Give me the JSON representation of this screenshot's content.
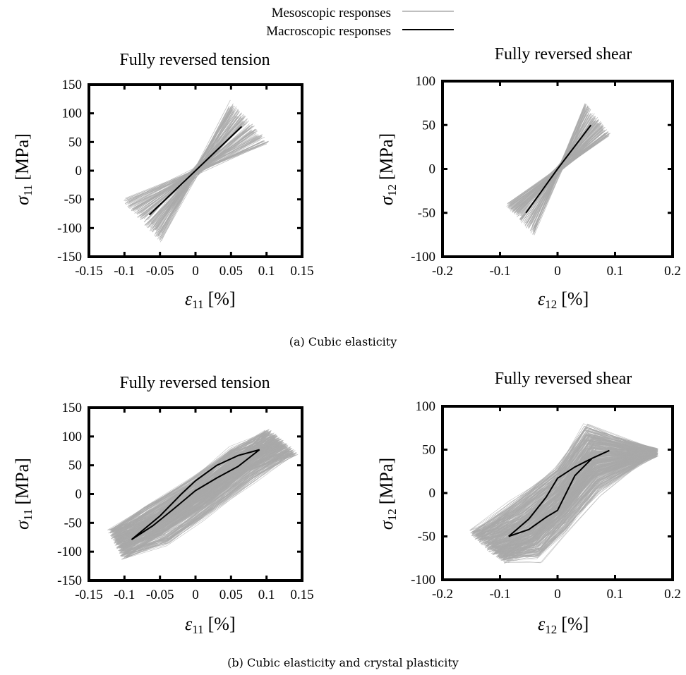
{
  "legend": {
    "meso_label": "Mesoscopic responses",
    "macro_label": "Macroscopic responses",
    "meso_color": "#aaaaaa",
    "macro_color": "#000000"
  },
  "captions": {
    "a": "(a) Cubic elasticity",
    "b": "(b) Cubic elasticity and crystal plasticity"
  },
  "chart_data": [
    {
      "id": "a-tension",
      "type": "line",
      "title": "Fully reversed tension",
      "xlabel": "ε",
      "xlabel_sub": "11",
      "xlabel_unit": "[%]",
      "ylabel": "σ",
      "ylabel_sub": "11",
      "ylabel_unit": "[MPa]",
      "xlim": [
        -0.15,
        0.15
      ],
      "ylim": [
        -150,
        150
      ],
      "xticks": [
        -0.15,
        -0.1,
        -0.05,
        0,
        0.05,
        0.1,
        0.15
      ],
      "xtick_labels": [
        "-0.15",
        "-0.1",
        "-0.05",
        "0",
        "0.05",
        "0.1",
        "0.15"
      ],
      "yticks": [
        -150,
        -100,
        -50,
        0,
        50,
        100,
        150
      ],
      "ytick_labels": [
        "-150",
        "-100",
        "-50",
        "0",
        "50",
        "100",
        "150"
      ],
      "macroscopic": {
        "x": [
          -0.065,
          0,
          0.065
        ],
        "y": [
          -77,
          0,
          77
        ]
      },
      "mesoscopic_envelope": {
        "steepest": {
          "x": [
            -0.047,
            0.048
          ],
          "y": [
            -118,
            115
          ]
        },
        "shallowest": {
          "x": [
            -0.101,
            0.101
          ],
          "y": [
            -50,
            48
          ]
        },
        "count": 150
      }
    },
    {
      "id": "a-shear",
      "type": "line",
      "title": "Fully reversed shear",
      "xlabel": "ε",
      "xlabel_sub": "12",
      "xlabel_unit": "[%]",
      "ylabel": "σ",
      "ylabel_sub": "12",
      "ylabel_unit": "[MPa]",
      "xlim": [
        -0.2,
        0.2
      ],
      "ylim": [
        -100,
        100
      ],
      "xticks": [
        -0.2,
        -0.1,
        0,
        0.1,
        0.2
      ],
      "xtick_labels": [
        "-0.2",
        "-0.1",
        "0",
        "0.1",
        "0.2"
      ],
      "yticks": [
        -100,
        -50,
        0,
        50,
        100
      ],
      "ytick_labels": [
        "-100",
        "-50",
        "0",
        "50",
        "100"
      ],
      "macroscopic": {
        "x": [
          -0.055,
          0,
          0.058
        ],
        "y": [
          -50,
          0,
          50
        ]
      },
      "mesoscopic_envelope": {
        "steepest": {
          "x": [
            -0.04,
            0.047
          ],
          "y": [
            -72,
            71
          ]
        },
        "shallowest": {
          "x": [
            -0.088,
            0.09
          ],
          "y": [
            -40,
            38
          ]
        },
        "count": 150
      }
    },
    {
      "id": "b-tension",
      "type": "line",
      "title": "Fully reversed tension",
      "xlabel": "ε",
      "xlabel_sub": "11",
      "xlabel_unit": "[%]",
      "ylabel": "σ",
      "ylabel_sub": "11",
      "ylabel_unit": "[MPa]",
      "xlim": [
        -0.15,
        0.15
      ],
      "ylim": [
        -150,
        150
      ],
      "xticks": [
        -0.15,
        -0.1,
        -0.05,
        0,
        0.05,
        0.1,
        0.15
      ],
      "xtick_labels": [
        "-0.15",
        "-0.1",
        "-0.05",
        "0",
        "0.05",
        "0.1",
        "0.15"
      ],
      "yticks": [
        -150,
        -100,
        -50,
        0,
        50,
        100,
        150
      ],
      "ytick_labels": [
        "-150",
        "-100",
        "-50",
        "0",
        "50",
        "100",
        "150"
      ],
      "macroscopic": {
        "x": [
          -0.09,
          -0.06,
          -0.03,
          0.0,
          0.03,
          0.06,
          0.09,
          0.06,
          0.03,
          0.0,
          -0.02,
          -0.05,
          -0.09
        ],
        "y": [
          -79,
          -55,
          -25,
          6,
          28,
          48,
          77,
          67,
          50,
          23,
          0,
          -38,
          -79
        ]
      },
      "mesoscopic_envelope": {
        "upper": {
          "x": [
            -0.12,
            -0.07,
            0.0,
            0.05,
            0.1
          ],
          "y": [
            -60,
            -20,
            30,
            80,
            110
          ]
        },
        "lower": {
          "x": [
            -0.1,
            -0.05,
            0.0,
            0.07,
            0.14
          ],
          "y": [
            -110,
            -70,
            -25,
            40,
            70
          ]
        },
        "count": 220
      }
    },
    {
      "id": "b-shear",
      "type": "line",
      "title": "Fully reversed shear",
      "xlabel": "ε",
      "xlabel_sub": "12",
      "xlabel_unit": "[%]",
      "ylabel": "σ",
      "ylabel_sub": "12",
      "ylabel_unit": "[MPa]",
      "xlim": [
        -0.2,
        0.2
      ],
      "ylim": [
        -100,
        100
      ],
      "xticks": [
        -0.2,
        -0.1,
        0,
        0.1,
        0.2
      ],
      "xtick_labels": [
        "-0.2",
        "-0.1",
        "0",
        "0.1",
        "0.2"
      ],
      "yticks": [
        -100,
        -50,
        0,
        50,
        100
      ],
      "ytick_labels": [
        "-100",
        "-50",
        "0",
        "50",
        "100"
      ],
      "macroscopic": {
        "x": [
          -0.085,
          -0.05,
          -0.02,
          0.0,
          0.03,
          0.06,
          0.09,
          0.06,
          0.03,
          0.0,
          -0.02,
          -0.05,
          -0.085
        ],
        "y": [
          -50,
          -30,
          -5,
          17,
          30,
          40,
          49,
          40,
          20,
          -20,
          -28,
          -42,
          -50
        ]
      },
      "mesoscopic_envelope": {
        "upper": {
          "x": [
            -0.15,
            -0.08,
            0.0,
            0.05,
            0.17
          ],
          "y": [
            -45,
            -10,
            30,
            78,
            48
          ]
        },
        "lower": {
          "x": [
            -0.09,
            -0.04,
            0.0,
            0.06,
            0.17
          ],
          "y": [
            -78,
            -60,
            -30,
            15,
            45
          ]
        },
        "count": 240
      }
    }
  ]
}
